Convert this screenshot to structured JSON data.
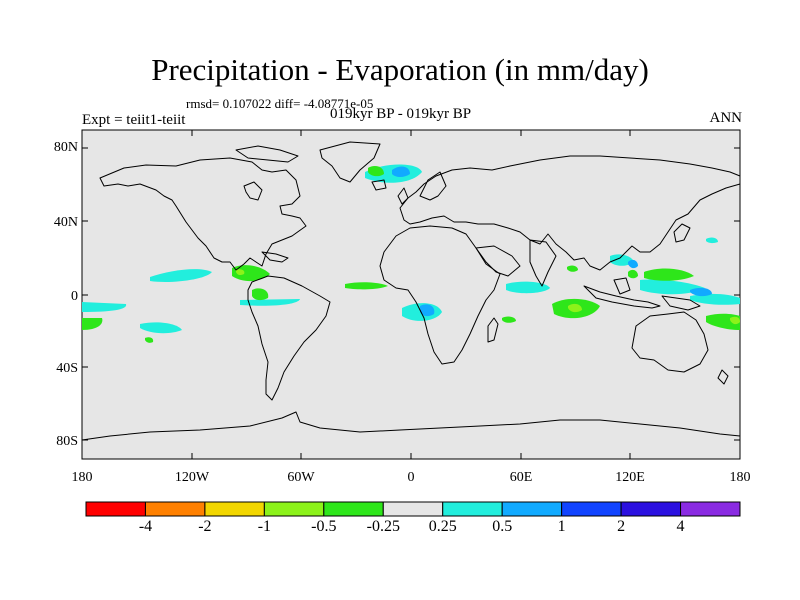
{
  "title": "Precipitation - Evaporation (in mm/day)",
  "stats": "rmsd= 0.107022 diff= -4.08771e-05",
  "experiment": "Expt = teiit1-teiit",
  "period": "019kyr BP - 019kyr BP",
  "season": "ANN",
  "lat_labels": [
    "80N",
    "40N",
    "0",
    "40S",
    "80S"
  ],
  "lon_labels": [
    "180",
    "120W",
    "60W",
    "0",
    "60E",
    "120E",
    "180"
  ],
  "colorbar": {
    "labels": [
      "-4",
      "-2",
      "-1",
      "-0.5",
      "-0.25",
      "0.25",
      "0.5",
      "1",
      "2",
      "4"
    ],
    "colors": [
      "#ff0000",
      "#ff8000",
      "#f2d600",
      "#8cf21a",
      "#2ee61a",
      "#e6e6e6",
      "#22eedd",
      "#11aaff",
      "#1144ff",
      "#2b10e0",
      "#8a2be2"
    ]
  },
  "colors": {
    "land_ocean_fill": "#e6e6e6",
    "coastline": "#000000"
  }
}
